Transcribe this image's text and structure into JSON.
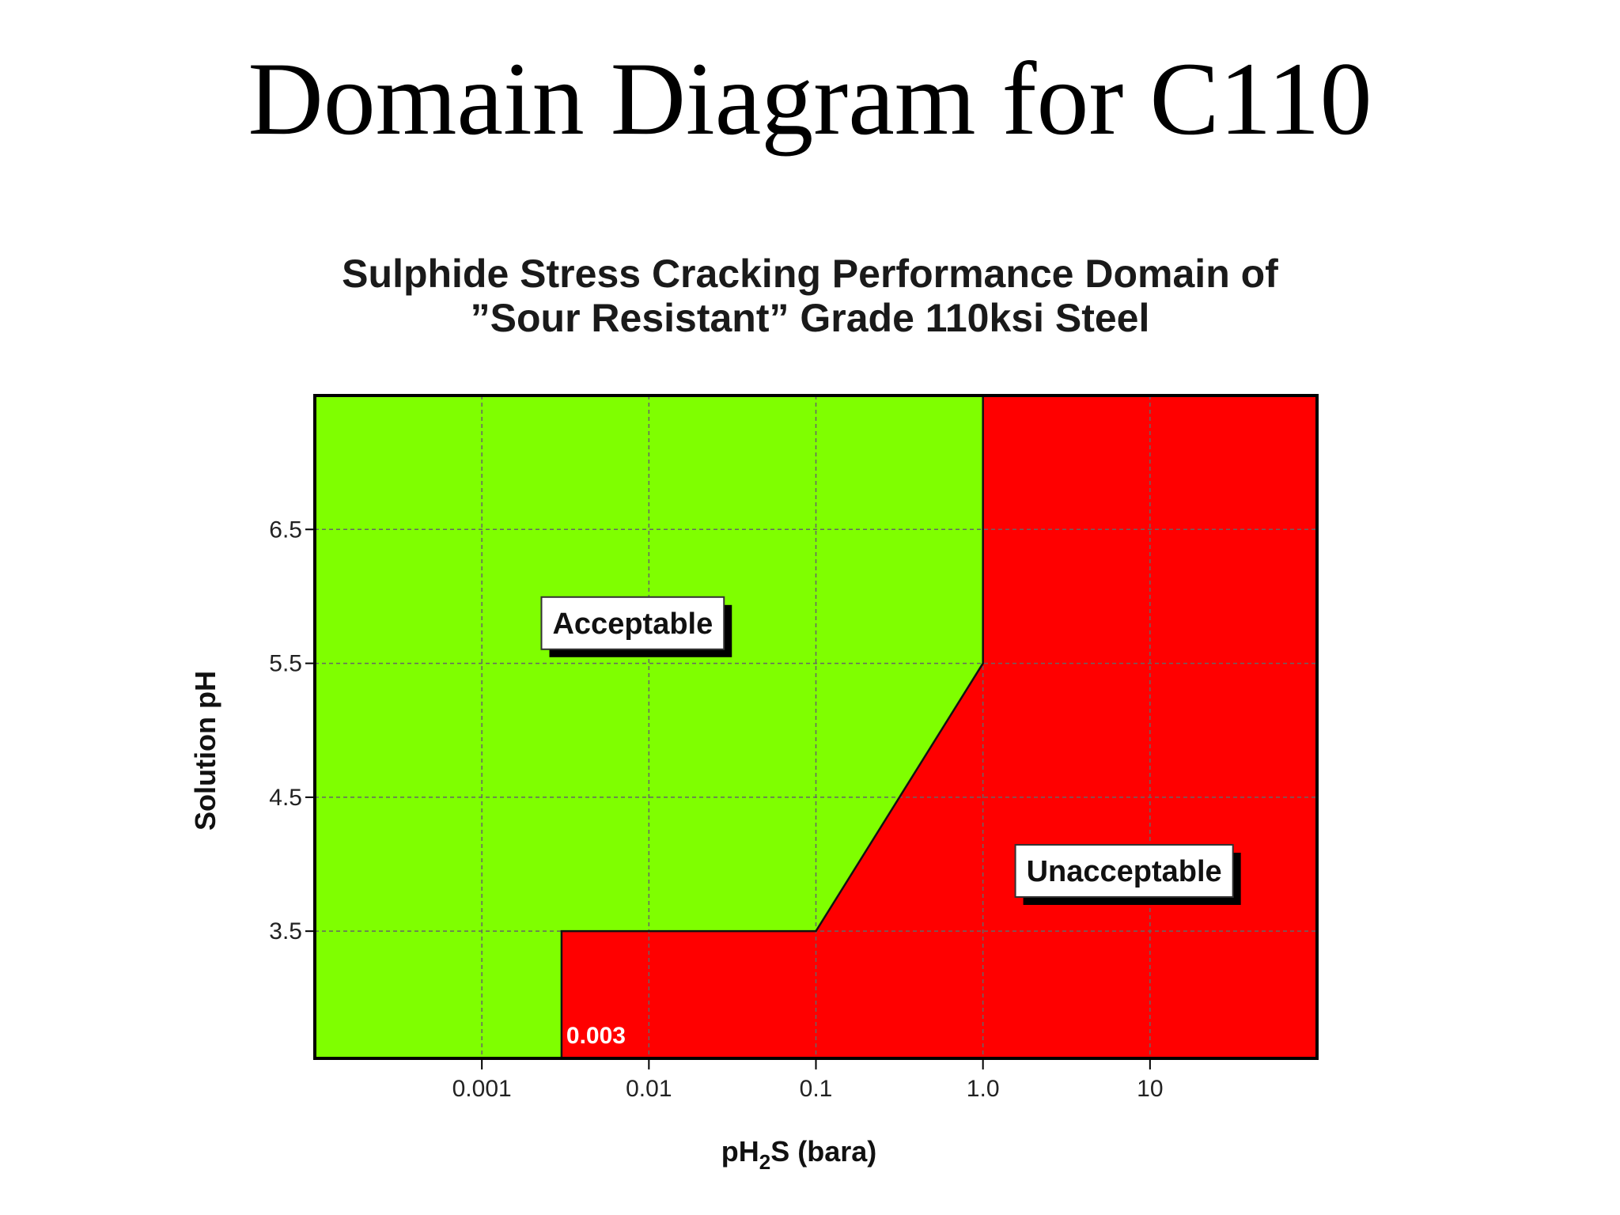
{
  "slide": {
    "title": "Domain Diagram for C110"
  },
  "chart_data": {
    "type": "area",
    "title_lines": [
      "Sulphide Stress Cracking Performance Domain of",
      "”Sour Resistant” Grade 110ksi Steel"
    ],
    "xlabel_parts": [
      "pH",
      "2",
      "S (bara)"
    ],
    "ylabel": "Solution pH",
    "x_scale": "log",
    "xlim": [
      0.0001,
      100
    ],
    "ylim": [
      2.55,
      7.5
    ],
    "x_ticks": [
      {
        "value": 0.001,
        "label": "0.001"
      },
      {
        "value": 0.01,
        "label": "0.01"
      },
      {
        "value": 0.1,
        "label": "0.1"
      },
      {
        "value": 1.0,
        "label": "1.0"
      },
      {
        "value": 10,
        "label": "10"
      }
    ],
    "y_ticks": [
      {
        "value": 3.5,
        "label": "3.5"
      },
      {
        "value": 4.5,
        "label": "4.5"
      },
      {
        "value": 5.5,
        "label": "5.5"
      },
      {
        "value": 6.5,
        "label": "6.5"
      }
    ],
    "grid": true,
    "boundary": [
      {
        "x": 0.0001,
        "y": 2.55
      },
      {
        "x": 0.003,
        "y": 2.55
      },
      {
        "x": 0.003,
        "y": 3.5
      },
      {
        "x": 0.1,
        "y": 3.5
      },
      {
        "x": 1.0,
        "y": 5.5
      },
      {
        "x": 1.0,
        "y": 7.5
      }
    ],
    "regions": [
      {
        "name": "Acceptable",
        "color": "#7fff00",
        "label_at": {
          "x": 0.008,
          "y": 5.8
        }
      },
      {
        "name": "Unacceptable",
        "color": "#ff0000",
        "label_at": {
          "x": 7,
          "y": 3.95
        }
      }
    ],
    "annotations": [
      {
        "text": "0.003",
        "x": 0.003,
        "y": 2.72
      }
    ]
  }
}
